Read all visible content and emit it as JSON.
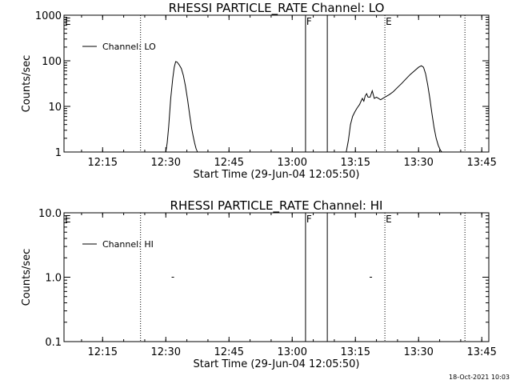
{
  "footer": {
    "timestamp": "18-Oct-2021 10:03"
  },
  "chart_data": [
    {
      "type": "line",
      "title": "RHESSI PARTICLE_RATE Channel: LO",
      "xlabel": "Start Time (29-Jun-04 12:05:50)",
      "ylabel": "Counts/sec",
      "y_scale": "log",
      "ylim": [
        1,
        1000
      ],
      "xlim": [
        "12:05:50",
        "13:46:40"
      ],
      "x_ticks": [
        "12:15",
        "12:30",
        "12:45",
        "13:00",
        "13:15",
        "13:30",
        "13:45"
      ],
      "y_ticks": [
        "1",
        "10",
        "100",
        "1000"
      ],
      "grid": false,
      "legend_position": "top-left",
      "series": [
        {
          "name": "Channel: LO",
          "segments": [
            {
              "x": [
                "12:30:00",
                "12:30:20",
                "12:30:40",
                "12:31:10",
                "12:31:40",
                "12:32:00",
                "12:32:20",
                "12:32:40",
                "12:33:10",
                "12:33:40",
                "12:34:10",
                "12:34:40",
                "12:35:10",
                "12:35:40",
                "12:36:10",
                "12:36:30",
                "12:36:50",
                "12:37:10",
                "12:37:30"
              ],
              "y": [
                1.0,
                1.6,
                3.5,
                15,
                42,
                72,
                96,
                94,
                82,
                68,
                48,
                28,
                14,
                6.5,
                3.2,
                2.2,
                1.6,
                1.2,
                1.0
              ]
            },
            {
              "x": [
                "13:12:50",
                "13:13:20",
                "13:13:50",
                "13:14:20",
                "13:14:50",
                "13:15:20",
                "13:15:40",
                "13:16:00",
                "13:16:20",
                "13:16:40",
                "13:17:00",
                "13:17:20",
                "13:17:40",
                "13:18:00",
                "13:18:30",
                "13:19:00",
                "13:19:30",
                "13:20:00",
                "13:21:00",
                "13:22:00",
                "13:23:00",
                "13:24:00",
                "13:25:00",
                "13:26:00",
                "13:27:00",
                "13:28:00",
                "13:29:00",
                "13:30:00",
                "13:30:40",
                "13:31:10",
                "13:31:40",
                "13:32:10",
                "13:32:40",
                "13:33:10",
                "13:33:40",
                "13:34:10",
                "13:34:40",
                "13:35:10",
                "13:35:30"
              ],
              "y": [
                1.0,
                1.8,
                4.0,
                6.0,
                7.5,
                9.0,
                10,
                11,
                13,
                15,
                13,
                17,
                19,
                16,
                16,
                22,
                15,
                16,
                14,
                16,
                18,
                21,
                26,
                32,
                40,
                50,
                60,
                72,
                78,
                72,
                52,
                30,
                15,
                7,
                3.5,
                2,
                1.4,
                1.1,
                1.0
              ]
            }
          ]
        }
      ],
      "markers": [
        {
          "label": "F",
          "x": "13:03:10",
          "style": "solid"
        },
        {
          "label": "",
          "x": "13:08:20",
          "style": "solid"
        },
        {
          "label": "",
          "x": "12:24:00",
          "style": "dotted"
        },
        {
          "label": "E",
          "x": "13:22:00",
          "style": "dotted"
        },
        {
          "label": "",
          "x": "13:41:00",
          "style": "dotted"
        }
      ],
      "corner_labels": [
        "E"
      ]
    },
    {
      "type": "scatter",
      "title": "RHESSI PARTICLE_RATE Channel: HI",
      "xlabel": "Start Time (29-Jun-04 12:05:50)",
      "ylabel": "Counts/sec",
      "y_scale": "log",
      "ylim": [
        0.1,
        10
      ],
      "xlim": [
        "12:05:50",
        "13:46:40"
      ],
      "x_ticks": [
        "12:15",
        "12:30",
        "12:45",
        "13:00",
        "13:15",
        "13:30",
        "13:45"
      ],
      "y_ticks": [
        "0.1",
        "1.0",
        "10.0"
      ],
      "grid": false,
      "legend_position": "top-left",
      "series": [
        {
          "name": "Channel: HI",
          "x": [
            "12:31:40",
            "13:18:40"
          ],
          "y": [
            1.0,
            1.0
          ]
        }
      ],
      "markers": [
        {
          "label": "F",
          "x": "13:03:10",
          "style": "solid"
        },
        {
          "label": "",
          "x": "13:08:20",
          "style": "solid"
        },
        {
          "label": "",
          "x": "12:24:00",
          "style": "dotted"
        },
        {
          "label": "E",
          "x": "13:22:00",
          "style": "dotted"
        },
        {
          "label": "",
          "x": "13:41:00",
          "style": "dotted"
        }
      ],
      "corner_labels": [
        "E"
      ]
    }
  ]
}
